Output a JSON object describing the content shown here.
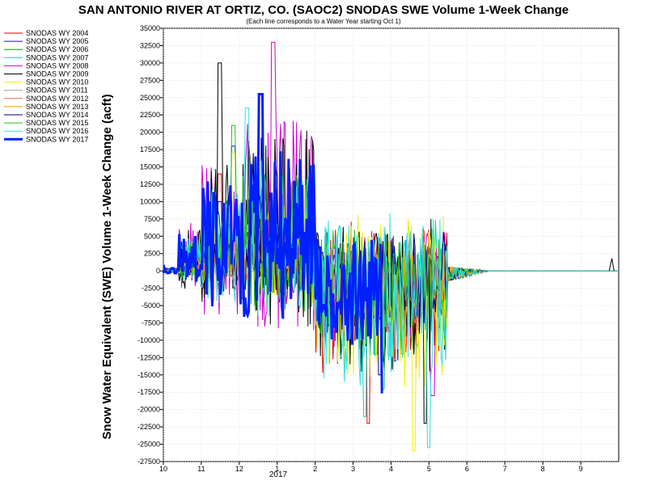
{
  "chart_data": {
    "type": "line",
    "title": "SAN ANTONIO RIVER AT ORTIZ, CO. (SAOC2) SNODAS SWE Volume 1-Week Change",
    "subtitle": "(Each line corresponds to a Water Year starting Oct 1)",
    "ylabel": "Snow Water Equivalent (SWE) Volume 1-Week Change (acft)",
    "xlabel": "",
    "year_label": "2017",
    "ylim": [
      -27500,
      35000
    ],
    "y_ticks": [
      "35000",
      "32500",
      "30000",
      "27500",
      "25000",
      "22500",
      "20000",
      "17500",
      "15000",
      "12500",
      "10000",
      "7500",
      "5000",
      "2500",
      "0",
      "-2500",
      "-5000",
      "-7500",
      "-10000",
      "-12500",
      "-15000",
      "-17500",
      "-20000",
      "-22500",
      "-25000",
      "-27500"
    ],
    "x_ticks": [
      "10",
      "11",
      "12",
      "1",
      "2",
      "3",
      "4",
      "5",
      "6",
      "7",
      "8",
      "9"
    ],
    "xlim_months": [
      0,
      12
    ],
    "grid": true,
    "legend_position": "left",
    "series": [
      {
        "name": "SNODAS WY 2004",
        "color": "#e00000",
        "peak": 14000,
        "trough": -22000,
        "trough_at": 5.4
      },
      {
        "name": "SNODAS WY 2005",
        "color": "#1010c0",
        "peak": 18000,
        "trough": -13000,
        "trough_at": 6.1
      },
      {
        "name": "SNODAS WY 2006",
        "color": "#00a000",
        "peak": 4000,
        "trough": -12000,
        "trough_at": 5.6
      },
      {
        "name": "SNODAS WY 2007",
        "color": "#00d0d0",
        "peak": 8000,
        "trough": -21000,
        "trough_at": 5.3
      },
      {
        "name": "SNODAS WY 2008",
        "color": "#d000d0",
        "peak": 33000,
        "trough": -18000,
        "trough_at": 7.1
      },
      {
        "name": "SNODAS WY 2009",
        "color": "#000000",
        "peak": 30000,
        "trough": -22000,
        "trough_at": 6.9
      },
      {
        "name": "SNODAS WY 2010",
        "color": "#f0f000",
        "peak": 17000,
        "trough": -26000,
        "trough_at": 6.6
      },
      {
        "name": "SNODAS WY 2011",
        "color": "#a0a0a0",
        "peak": 6000,
        "trough": -8000,
        "trough_at": 5.9
      },
      {
        "name": "SNODAS WY 2012",
        "color": "#e07050",
        "peak": 6000,
        "trough": -9000,
        "trough_at": 5.4
      },
      {
        "name": "SNODAS WY 2013",
        "color": "#f0a000",
        "peak": 5000,
        "trough": -12000,
        "trough_at": 6.3
      },
      {
        "name": "SNODAS WY 2014",
        "color": "#000080",
        "peak": 10000,
        "trough": -15000,
        "trough_at": 5.7
      },
      {
        "name": "SNODAS WY 2015",
        "color": "#20c020",
        "peak": 21000,
        "trough": -17000,
        "trough_at": 5.8
      },
      {
        "name": "SNODAS WY 2016",
        "color": "#30e0e0",
        "peak": 23500,
        "trough": -25500,
        "trough_at": 7.0
      },
      {
        "name": "SNODAS WY 2017",
        "color": "#0020ff",
        "peak": 25500,
        "trough": -17500,
        "trough_at": 5.8,
        "last_month": 5.8
      }
    ]
  }
}
